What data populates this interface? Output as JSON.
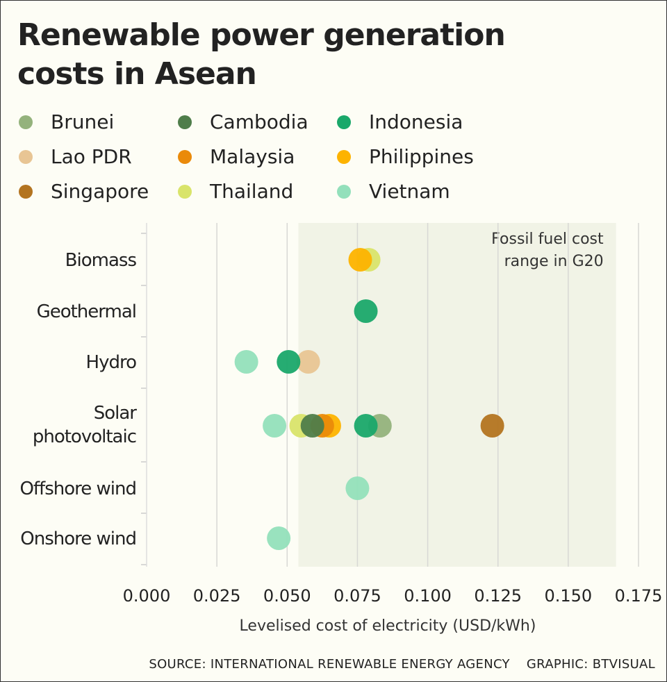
{
  "chart_data": {
    "type": "scatter",
    "title": "Renewable power generation costs in Asean",
    "xlabel": "Levelised cost of electricity (USD/kWh)",
    "xlim": [
      0,
      0.175
    ],
    "xticks": [
      "0.000",
      "0.025",
      "0.050",
      "0.075",
      "0.100",
      "0.125",
      "0.150",
      "0.175"
    ],
    "categories": [
      "Biomass",
      "Geothermal",
      "Hydro",
      "Solar photovoltaic",
      "Offshore wind",
      "Onshore wind"
    ],
    "grid": "vertical",
    "legend_placement": "top",
    "shaded_range": {
      "label": "Fossil fuel cost range in G20",
      "from": 0.054,
      "to": 0.167,
      "color": "#f1f3e6"
    },
    "series": [
      {
        "name": "Brunei",
        "color": "#94b27c",
        "points": {
          "Solar photovoltaic": 0.083
        }
      },
      {
        "name": "Cambodia",
        "color": "#4f7d4a",
        "points": {
          "Solar photovoltaic": 0.059
        }
      },
      {
        "name": "Indonesia",
        "color": "#1aa86a",
        "points": {
          "Geothermal": 0.078,
          "Hydro": 0.0505,
          "Solar photovoltaic": 0.078
        }
      },
      {
        "name": "Lao PDR",
        "color": "#e8c594",
        "points": {
          "Hydro": 0.0575
        }
      },
      {
        "name": "Malaysia",
        "color": "#ea8a0a",
        "points": {
          "Solar photovoltaic": 0.0625
        }
      },
      {
        "name": "Philippines",
        "color": "#fdb300",
        "points": {
          "Biomass": 0.076,
          "Solar photovoltaic": 0.065
        }
      },
      {
        "name": "Singapore",
        "color": "#b37420",
        "points": {
          "Solar photovoltaic": 0.123
        }
      },
      {
        "name": "Thailand",
        "color": "#d9e46a",
        "points": {
          "Biomass": 0.079,
          "Solar photovoltaic": 0.055
        }
      },
      {
        "name": "Vietnam",
        "color": "#93e0bb",
        "points": {
          "Hydro": 0.0355,
          "Solar photovoltaic": 0.0455,
          "Offshore wind": 0.075,
          "Onshore wind": 0.047
        }
      }
    ]
  },
  "footer": {
    "source": "SOURCE: INTERNATIONAL RENEWABLE ENERGY AGENCY    GRAPHIC: BTVISUAL"
  }
}
